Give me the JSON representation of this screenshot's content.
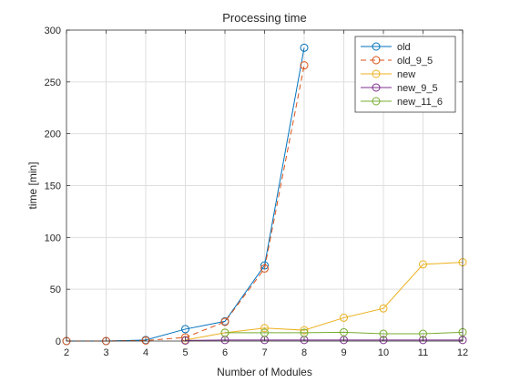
{
  "chart_data": {
    "type": "line",
    "title": "Processing time",
    "xlabel": "Number of Modules",
    "ylabel": "time [min]",
    "xlim": [
      2,
      12
    ],
    "ylim": [
      0,
      300
    ],
    "xticks": [
      2,
      3,
      4,
      5,
      6,
      7,
      8,
      9,
      10,
      11,
      12
    ],
    "yticks": [
      0,
      50,
      100,
      150,
      200,
      250,
      300
    ],
    "grid": true,
    "legend_position": "top-right",
    "series": [
      {
        "name": "old",
        "color": "#0072BD",
        "dash": "solid",
        "x": [
          2,
          3,
          4,
          5,
          6,
          7,
          8
        ],
        "y": [
          0,
          0,
          1,
          11.5,
          19,
          73,
          283
        ]
      },
      {
        "name": "old_9_5",
        "color": "#D95319",
        "dash": "dashed",
        "x": [
          2,
          3,
          4,
          5,
          6,
          7,
          8
        ],
        "y": [
          0,
          0,
          0.5,
          3.5,
          18.5,
          70,
          266
        ]
      },
      {
        "name": "new",
        "color": "#EDB120",
        "dash": "solid",
        "x": [
          5,
          6,
          7,
          8,
          9,
          10,
          11,
          12
        ],
        "y": [
          1,
          8,
          12.5,
          10.5,
          22.5,
          31.5,
          74,
          76
        ]
      },
      {
        "name": "new_9_5",
        "color": "#7E2F8E",
        "dash": "solid",
        "x": [
          5,
          6,
          7,
          8,
          9,
          10,
          11,
          12
        ],
        "y": [
          0.5,
          1,
          1,
          1,
          1,
          1,
          1,
          1
        ]
      },
      {
        "name": "new_11_6",
        "color": "#77AC30",
        "dash": "solid",
        "x": [
          6,
          7,
          8,
          9,
          10,
          11,
          12
        ],
        "y": [
          8,
          8,
          8,
          8.5,
          7,
          7,
          8.5
        ]
      }
    ]
  }
}
